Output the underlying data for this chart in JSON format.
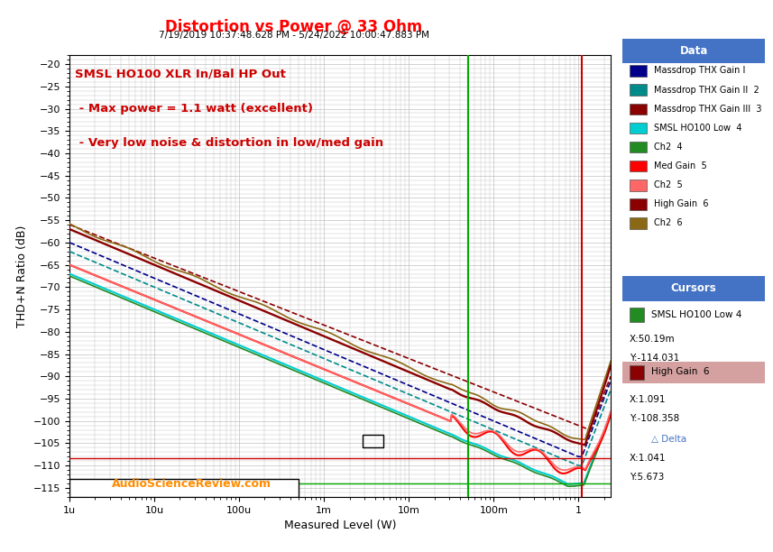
{
  "title": "Distortion vs Power @ 33 Ohm",
  "subtitle": "7/19/2019 10:37:48.628 PM - 5/24/2022 10:00:47.883 PM",
  "xlabel": "Measured Level (W)",
  "ylabel": "THD+N Ratio (dB)",
  "title_color": "#FF0000",
  "subtitle_color": "#000000",
  "watermark": "AudioScienceReview.com",
  "annotation_text": "SMSL HO100 XLR In/Bal HP Out\n\n - Max power = 1.1 watt (excellent)\n\n - Very low noise & distortion in low/med gain",
  "annotation_color": "#CC0000",
  "xlim_log": [
    -6,
    0.4
  ],
  "ylim": [
    -117,
    -18
  ],
  "yticks": [
    -20,
    -25,
    -30,
    -35,
    -40,
    -45,
    -50,
    -55,
    -60,
    -65,
    -70,
    -75,
    -80,
    -85,
    -90,
    -95,
    -100,
    -105,
    -110,
    -115
  ],
  "xtick_labels": [
    "1u",
    "10u",
    "100u",
    "1m",
    "10m",
    "100m",
    "1"
  ],
  "xtick_values_log": [
    -6,
    -5,
    -4,
    -3,
    -2,
    -1,
    0
  ],
  "vline1_x_log": -1.301,
  "vline2_x_log": 0.0378,
  "hline_y": -108.358,
  "hline2_y": -114.031,
  "cursor_vline_x_log": 0.038,
  "bg_color": "#FFFFFF",
  "plot_bg_color": "#FFFFFF",
  "grid_color": "#C0C0C0",
  "series": [
    {
      "name": "Massdrop THX Gain I",
      "color": "#00008B",
      "dashed": false,
      "ch2": false,
      "label_num": "1"
    },
    {
      "name": "Massdrop THX Gain II",
      "color": "#008B8B",
      "dashed": false,
      "ch2": false,
      "label_num": "2"
    },
    {
      "name": "Massdrop THX Gain III",
      "color": "#8B0000",
      "dashed": false,
      "ch2": false,
      "label_num": "3"
    },
    {
      "name": "SMSL HO100 Low",
      "color": "#00CED1",
      "dashed": false,
      "ch2": false,
      "label_num": "4"
    },
    {
      "name": "Ch2",
      "color": "#228B22",
      "dashed": false,
      "ch2": true,
      "label_num": "4"
    },
    {
      "name": "Med Gain",
      "color": "#FF0000",
      "dashed": false,
      "ch2": false,
      "label_num": "5"
    },
    {
      "name": "Ch2",
      "color": "#FF6666",
      "dashed": false,
      "ch2": true,
      "label_num": "5"
    },
    {
      "name": "High Gain",
      "color": "#8B0000",
      "dashed": false,
      "ch2": false,
      "label_num": "6"
    },
    {
      "name": "Ch2",
      "color": "#8B6914",
      "dashed": false,
      "ch2": true,
      "label_num": "6"
    }
  ],
  "legend_data_title_bg": "#4472C4",
  "legend_cursor_title_bg": "#4472C4",
  "legend_data_title_color": "#FFFFFF",
  "cursor1_label": "SMSL HO100 Low 4",
  "cursor1_color": "#228B22",
  "cursor1_x": "50.19m",
  "cursor1_y": "-114.031",
  "cursor2_label": "High Gain  6",
  "cursor2_color": "#8B0000",
  "cursor2_x": "1.091",
  "cursor2_y": "-108.358",
  "cursor2_bg": "#D4A0A0",
  "delta_x": "1.041",
  "delta_y": "5.673"
}
